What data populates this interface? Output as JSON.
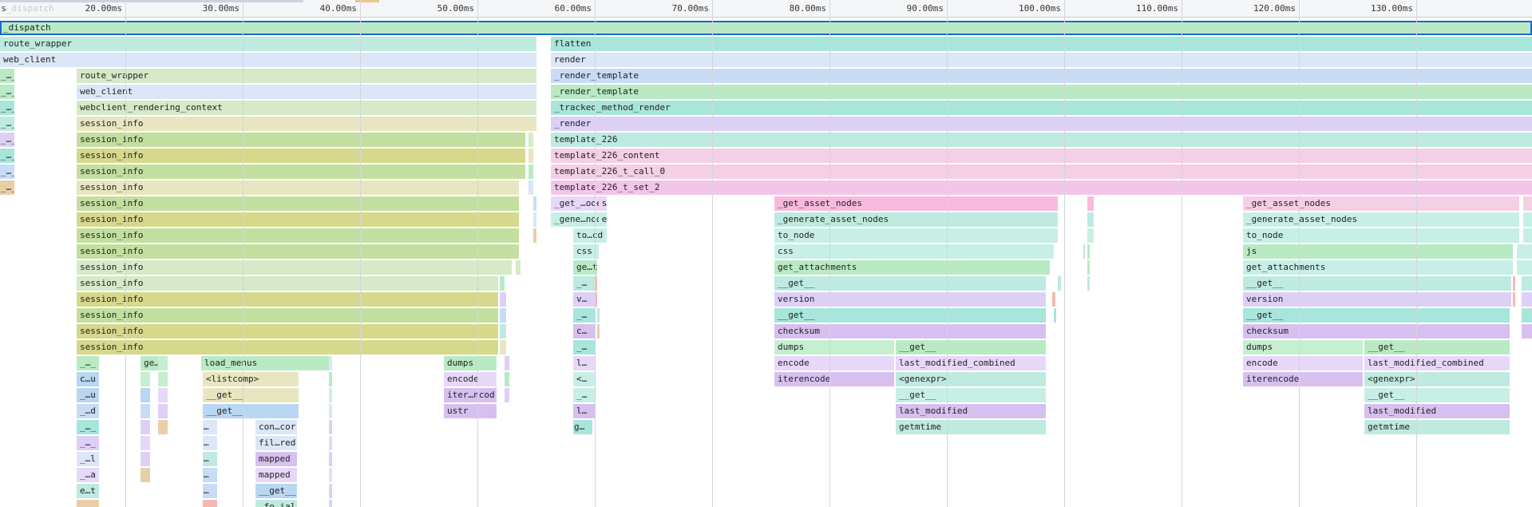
{
  "ruler": {
    "ticks": [
      "20.00ms",
      "30.00ms",
      "40.00ms",
      "50.00ms",
      "60.00ms",
      "70.00ms",
      "80.00ms",
      "90.00ms",
      "100.00ms",
      "110.00ms",
      "120.00ms",
      "130.00ms"
    ],
    "left_label": "s",
    "faded_label": "_dispatch"
  },
  "frames": {
    "dispatch": "_dispatch",
    "route_wrapper": "route_wrapper",
    "web_client": "web_client",
    "flatten": "flatten",
    "render": "render",
    "render_template": "_render_template",
    "tracked_method_render": "_tracked_method_render",
    "underscore_render": "_render",
    "template_226": "template_226",
    "template_226_content": "template_226_content",
    "template_226_t_call_0": "template_226_t_call_0",
    "template_226_t_set_2": "template_226_t_set_2",
    "webclient_rendering_context": "webclient_rendering_context",
    "session_info": "session_info",
    "load_menus": "load_menus",
    "listcomp": "<listcomp>",
    "get": "__get__",
    "dumps": "dumps",
    "encode": "encode",
    "iterencode_trunc": "iter…ncod",
    "ustr": "ustr",
    "con_cor": "con…cor",
    "fil_red": "fil…red",
    "mapped": "mapped",
    "fo_ial": "_fo…ial",
    "get_odes": "_get_…odes",
    "gene_node": "_gene…node",
    "to_cd": "to…cd",
    "css": "css",
    "ge_t": "ge…t",
    "dot_dash": "_…",
    "v_dots": "v…",
    "c_dots": "c…",
    "l_dots": "l…",
    "lt_dots": "<…",
    "g_dots": "g…",
    "get_asset_nodes": "_get_asset_nodes",
    "generate_asset_nodes": "_generate_asset_nodes",
    "to_node": "to_node",
    "get_attachments": "get_attachments",
    "version": "version",
    "checksum": "checksum",
    "iterencode": "iterencode",
    "last_modified_combined": "last_modified_combined",
    "genexpr": "<genexpr>",
    "last_modified": "last_modified",
    "getmtime": "getmtime",
    "js": "js",
    "ge_e": "ge…e",
    "u_dots": "_…",
    "cu_dots": "c…u",
    "uu_dots": "_…u",
    "ud_dots": "_…d",
    "ul_dots": "_…l",
    "ua_dots": "_…a",
    "et_dots": "e…t",
    "s_dots": "…",
    "underscore_dots": "_…_"
  },
  "colors": {
    "green": "#b5e9c3",
    "teal": "#a9e6dc",
    "blue": "#cfe0f7",
    "purple": "#e0d3f7",
    "pink": "#f6d3e6",
    "selection_outline": "#1a66d6"
  }
}
